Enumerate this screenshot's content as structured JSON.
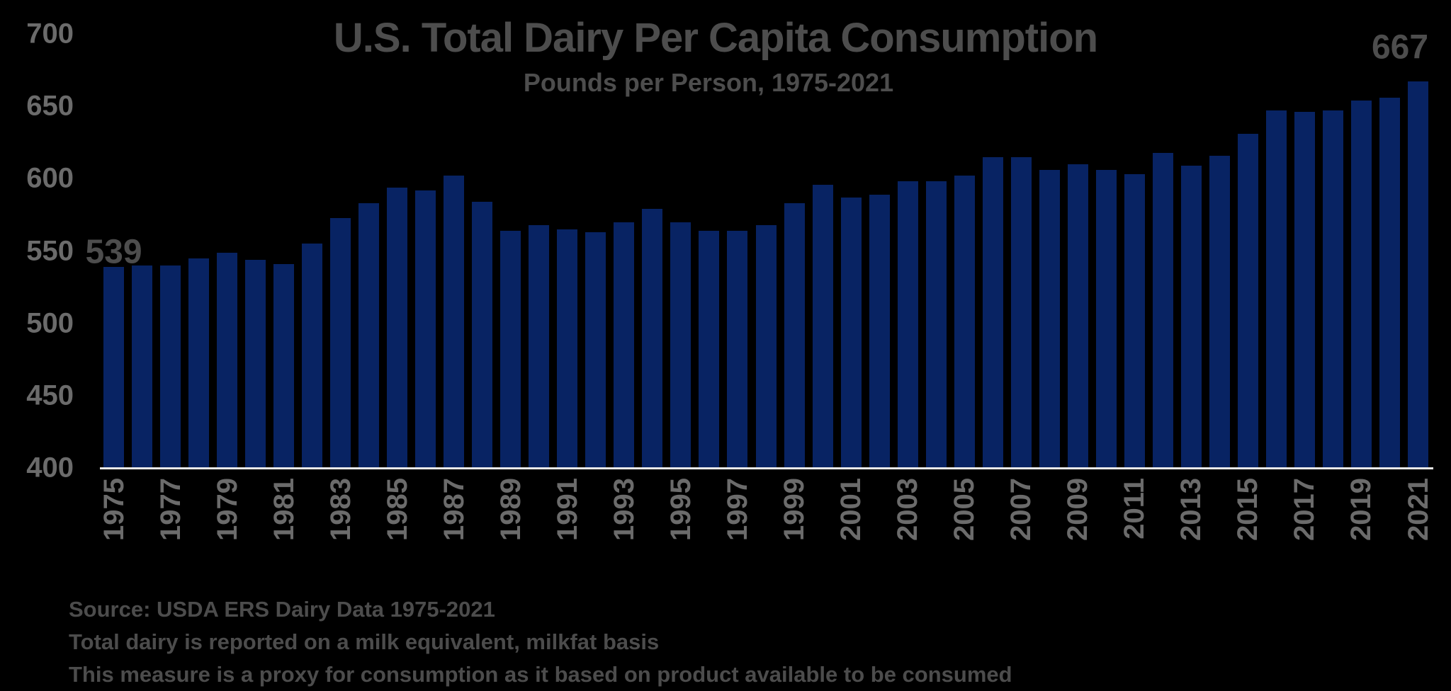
{
  "title": "U.S. Total Dairy Per Capita Consumption",
  "subtitle": "Pounds per Person, 1975-2021",
  "annotations": {
    "first_bar_label": "539",
    "last_bar_label": "667"
  },
  "footnotes": [
    "Source: USDA ERS Dairy Data 1975-2021",
    "Total dairy is reported on a milk equivalent, milkfat basis",
    "This measure is a proxy for consumption as it based on product available to be consumed"
  ],
  "colors": {
    "background": "#000000",
    "bar": "#082363",
    "title_text": "#4d4d4d",
    "axis_text": "#6b6b6b",
    "footnote_text": "#4c4c4c",
    "axis_line": "#e9e9e9"
  },
  "chart_data": {
    "type": "bar",
    "title": "U.S. Total Dairy Per Capita Consumption",
    "subtitle": "Pounds per Person, 1975-2021",
    "xlabel": "",
    "ylabel": "",
    "ylim": [
      400,
      700
    ],
    "yticks": [
      400,
      450,
      500,
      550,
      600,
      650,
      700
    ],
    "xtick_step": 2,
    "grid": false,
    "legend": false,
    "bar_color": "#082363",
    "categories": [
      1975,
      1976,
      1977,
      1978,
      1979,
      1980,
      1981,
      1982,
      1983,
      1984,
      1985,
      1986,
      1987,
      1988,
      1989,
      1990,
      1991,
      1992,
      1993,
      1994,
      1995,
      1996,
      1997,
      1998,
      1999,
      2000,
      2001,
      2002,
      2003,
      2004,
      2005,
      2006,
      2007,
      2008,
      2009,
      2010,
      2011,
      2012,
      2013,
      2014,
      2015,
      2016,
      2017,
      2018,
      2019,
      2020,
      2021
    ],
    "values": [
      539,
      540,
      540,
      545,
      549,
      544,
      541,
      555,
      573,
      583,
      594,
      592,
      602,
      584,
      564,
      568,
      565,
      563,
      570,
      579,
      570,
      564,
      564,
      568,
      583,
      596,
      587,
      589,
      598,
      598,
      602,
      615,
      615,
      606,
      610,
      606,
      603,
      618,
      609,
      616,
      631,
      647,
      646,
      647,
      654,
      656,
      667
    ],
    "data_labels": [
      {
        "category": 1975,
        "label": "539"
      },
      {
        "category": 2021,
        "label": "667"
      }
    ]
  }
}
